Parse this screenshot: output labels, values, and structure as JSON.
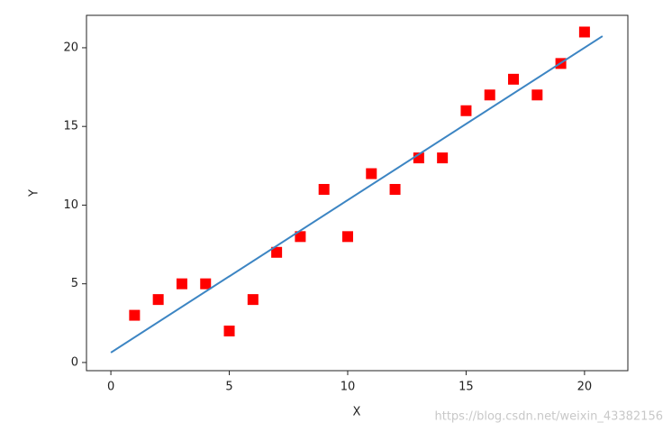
{
  "chart_data": {
    "type": "scatter",
    "xlabel": "X",
    "ylabel": "Y",
    "series": [
      {
        "kind": "scatter",
        "marker": "square",
        "color": "#ff0000",
        "x": [
          1,
          2,
          3,
          4,
          5,
          6,
          7,
          8,
          9,
          10,
          11,
          12,
          13,
          14,
          15,
          16,
          17,
          18,
          19,
          20
        ],
        "values": [
          3,
          4,
          5,
          5,
          2,
          4,
          7,
          8,
          11,
          8,
          12,
          11,
          13,
          13,
          16,
          17,
          18,
          17,
          19,
          21
        ]
      },
      {
        "kind": "line",
        "color": "#3c85c3",
        "x": [
          0,
          20.76
        ],
        "values": [
          0.63,
          20.74
        ]
      }
    ],
    "xlim": [
      -1.03,
      21.83
    ],
    "xticks": [
      0,
      5,
      10,
      15,
      20
    ],
    "ylim": [
      -0.52,
      22.06
    ],
    "yticks": [
      0,
      5,
      10,
      15,
      20
    ],
    "grid": false
  },
  "watermark": "https://blog.csdn.net/weixin_43382156"
}
